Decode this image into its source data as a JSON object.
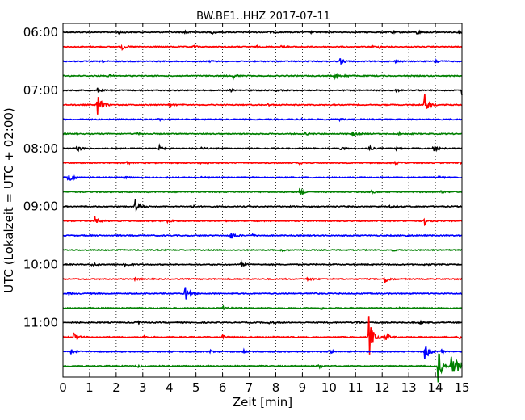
{
  "chart_data": {
    "type": "line",
    "title": "BW.BE1..HHZ 2017-07-11",
    "xlabel": "Zeit  [min]",
    "ylabel": "UTC (Lokalzeit = UTC + 02:00)",
    "xlim": [
      0,
      15
    ],
    "x_ticks": [
      "0",
      "1",
      "2",
      "3",
      "4",
      "5",
      "6",
      "7",
      "8",
      "9",
      "10",
      "11",
      "12",
      "13",
      "14",
      "15"
    ],
    "y_ticks": [
      "06:00",
      "07:00",
      "08:00",
      "09:00",
      "10:00",
      "11:00"
    ],
    "grid": "vertical dotted at each minute",
    "trace_colors": [
      "#000000",
      "#ff0000",
      "#0000ff",
      "#008000"
    ],
    "traces": [
      {
        "start": "06:00",
        "events": [
          [
            2.1,
            0.3
          ],
          [
            4.6,
            0.6
          ],
          [
            5.6,
            0.3
          ],
          [
            7.7,
            0.2
          ],
          [
            9.3,
            0.2
          ],
          [
            12.3,
            0.4
          ],
          [
            13.3,
            0.5
          ],
          [
            14.9,
            0.3
          ]
        ]
      },
      {
        "start": "06:15",
        "events": [
          [
            2.2,
            0.8
          ],
          [
            4.9,
            0.3
          ],
          [
            7.3,
            0.2
          ],
          [
            8.2,
            0.3
          ],
          [
            11.9,
            0.3
          ],
          [
            11.6,
            0.2
          ]
        ]
      },
      {
        "start": "06:30",
        "events": [
          [
            1.5,
            0.2
          ],
          [
            5.5,
            0.3
          ],
          [
            10.4,
            0.8
          ],
          [
            12.5,
            0.3
          ],
          [
            14.0,
            0.5
          ]
        ]
      },
      {
        "start": "06:45",
        "events": [
          [
            1.7,
            0.2
          ],
          [
            6.4,
            0.6
          ],
          [
            10.2,
            0.5
          ],
          [
            10.6,
            0.3
          ]
        ]
      },
      {
        "start": "07:00",
        "events": [
          [
            1.3,
            0.5
          ],
          [
            6.3,
            0.3
          ],
          [
            8.0,
            0.2
          ],
          [
            12.5,
            0.3
          ],
          [
            15.0,
            1.3
          ]
        ]
      },
      {
        "start": "07:15",
        "events": [
          [
            1.3,
            3.0
          ],
          [
            4.0,
            0.4
          ],
          [
            7.7,
            0.2
          ],
          [
            13.6,
            2.8
          ]
        ]
      },
      {
        "start": "07:30",
        "events": [
          [
            3.6,
            0.4
          ],
          [
            8.9,
            0.2
          ],
          [
            10.4,
            0.2
          ]
        ]
      },
      {
        "start": "07:45",
        "events": [
          [
            2.8,
            0.2
          ],
          [
            9.1,
            0.3
          ],
          [
            10.9,
            0.7
          ],
          [
            12.6,
            0.4
          ]
        ]
      },
      {
        "start": "08:00",
        "events": [
          [
            0.5,
            1.1
          ],
          [
            3.6,
            0.7
          ],
          [
            5.2,
            0.3
          ],
          [
            10.4,
            0.3
          ],
          [
            11.5,
            0.5
          ],
          [
            12.5,
            0.3
          ],
          [
            13.9,
            0.9
          ]
        ]
      },
      {
        "start": "08:15",
        "events": [
          [
            2.4,
            0.3
          ],
          [
            5.2,
            0.3
          ],
          [
            8.9,
            0.3
          ],
          [
            12.5,
            0.3
          ],
          [
            14.9,
            0.2
          ]
        ]
      },
      {
        "start": "08:30",
        "events": [
          [
            0.2,
            1.1
          ],
          [
            2.3,
            0.2
          ],
          [
            5.2,
            0.2
          ],
          [
            14.1,
            0.4
          ]
        ]
      },
      {
        "start": "08:45",
        "events": [
          [
            8.9,
            1.0
          ],
          [
            11.6,
            0.3
          ],
          [
            14.2,
            0.3
          ]
        ]
      },
      {
        "start": "09:00",
        "events": [
          [
            2.7,
            2.3
          ],
          [
            4.8,
            0.4
          ],
          [
            12.3,
            0.3
          ]
        ]
      },
      {
        "start": "09:15",
        "events": [
          [
            1.2,
            1.0
          ],
          [
            3.9,
            0.5
          ],
          [
            13.6,
            1.0
          ]
        ]
      },
      {
        "start": "09:30",
        "events": [
          [
            6.3,
            1.2
          ],
          [
            7.1,
            0.3
          ],
          [
            12.9,
            0.2
          ]
        ]
      },
      {
        "start": "09:45",
        "events": [
          [
            8.2,
            0.3
          ],
          [
            12.4,
            0.2
          ]
        ]
      },
      {
        "start": "10:00",
        "events": [
          [
            1.1,
            0.5
          ],
          [
            2.3,
            0.7
          ],
          [
            6.7,
            0.5
          ],
          [
            13.6,
            0.2
          ]
        ]
      },
      {
        "start": "10:15",
        "events": [
          [
            2.7,
            0.2
          ],
          [
            9.2,
            0.5
          ],
          [
            12.1,
            1.1
          ]
        ]
      },
      {
        "start": "10:30",
        "events": [
          [
            0.2,
            0.3
          ],
          [
            4.6,
            2.0
          ],
          [
            9.3,
            0.2
          ]
        ]
      },
      {
        "start": "10:45",
        "events": [
          [
            6.0,
            0.7
          ],
          [
            9.7,
            0.3
          ],
          [
            12.6,
            0.2
          ]
        ]
      },
      {
        "start": "11:00",
        "events": [
          [
            2.8,
            0.3
          ],
          [
            7.7,
            0.4
          ],
          [
            11.0,
            0.3
          ],
          [
            13.4,
            0.3
          ]
        ]
      },
      {
        "start": "11:15",
        "events": [
          [
            0.4,
            0.9
          ],
          [
            3.0,
            0.4
          ],
          [
            6.0,
            0.4
          ],
          [
            7.6,
            0.4
          ],
          [
            11.5,
            5.5
          ],
          [
            12.1,
            1.4
          ],
          [
            14.9,
            0.4
          ]
        ]
      },
      {
        "start": "11:30",
        "events": [
          [
            0.3,
            0.6
          ],
          [
            5.5,
            0.4
          ],
          [
            6.8,
            0.3
          ],
          [
            10.0,
            0.5
          ],
          [
            13.6,
            2.4
          ],
          [
            14.2,
            0.4
          ]
        ]
      },
      {
        "start": "11:45",
        "events": [
          [
            2.8,
            0.3
          ],
          [
            9.6,
            0.5
          ],
          [
            14.1,
            4.5
          ],
          [
            14.6,
            2.5
          ],
          [
            14.8,
            1.2
          ]
        ]
      }
    ]
  }
}
